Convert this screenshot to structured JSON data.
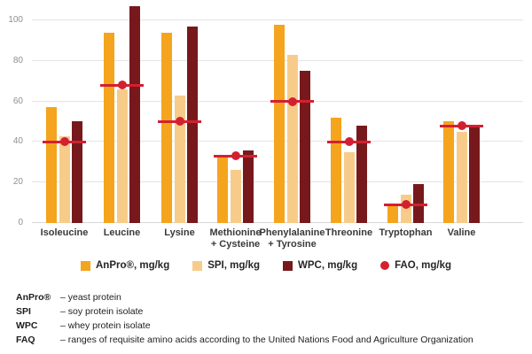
{
  "chart_data": {
    "type": "bar",
    "title": "",
    "xlabel": "",
    "ylabel": "",
    "categories": [
      "Isoleucine",
      "Leucine",
      "Lysine",
      "Methionine\n+ Cysteine",
      "Phenylalanine\n+ Tyrosine",
      "Threonine",
      "Tryptophan",
      "Valine"
    ],
    "series": [
      {
        "name": "AnPro®, mg/kg",
        "color": "#F5A41E",
        "values": [
          57,
          94,
          94,
          33,
          98,
          52,
          9,
          50
        ]
      },
      {
        "name": "SPI, mg/kg",
        "color": "#F7CC8A",
        "values": [
          43,
          66,
          63,
          26,
          83,
          35,
          14,
          45
        ]
      },
      {
        "name": "WPC, mg/kg",
        "color": "#77191C",
        "values": [
          50,
          107,
          97,
          36,
          75,
          48,
          19,
          48
        ]
      }
    ],
    "marker_series": {
      "name": "FAO, mg/kg",
      "color": "#D32030",
      "values": [
        40,
        68,
        50,
        33,
        60,
        40,
        9,
        48
      ]
    },
    "ylim": [
      0,
      110
    ],
    "yticks": [
      0,
      20,
      40,
      60,
      80,
      100
    ],
    "grid": true,
    "legend_position": "bottom"
  },
  "legend": {
    "items": [
      {
        "label": "AnPro®, mg/kg",
        "swatch": "square",
        "color": "#F5A41E"
      },
      {
        "label": "SPI, mg/kg",
        "swatch": "square",
        "color": "#F7CC8A"
      },
      {
        "label": "WPC, mg/kg",
        "swatch": "square",
        "color": "#77191C"
      },
      {
        "label": "FAO, mg/kg",
        "swatch": "circle",
        "color": "#D32030"
      }
    ]
  },
  "footnotes": [
    {
      "term": "AnPro®",
      "desc": "– yeast protein"
    },
    {
      "term": "SPI",
      "desc": "– soy protein isolate"
    },
    {
      "term": "WPC",
      "desc": "– whey protein isolate"
    },
    {
      "term": "FAQ",
      "desc": "– ranges of requisite amino acids according to the United Nations Food and Agriculture Organization"
    }
  ]
}
